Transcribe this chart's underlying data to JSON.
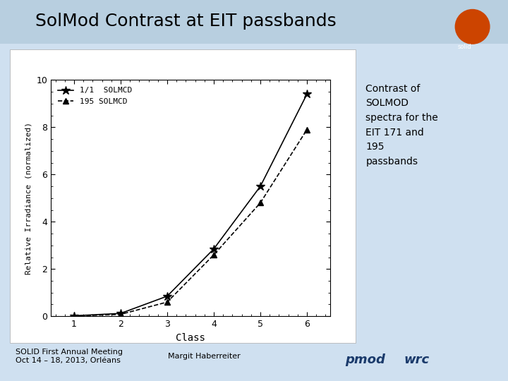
{
  "title": "SolMod Contrast at EIT passbands",
  "xlabel": "Class",
  "ylabel": "Relative Irradiance (normalized)",
  "xlim": [
    0.5,
    6.5
  ],
  "ylim": [
    0,
    10
  ],
  "xticks": [
    1,
    2,
    3,
    4,
    5,
    6
  ],
  "yticks": [
    0,
    2,
    4,
    6,
    8,
    10
  ],
  "series_171": {
    "label": "1/1  SOLMCD",
    "x": [
      1,
      2,
      3,
      4,
      5,
      6
    ],
    "y": [
      0.02,
      0.12,
      0.85,
      2.85,
      5.5,
      9.4
    ],
    "linestyle": "-",
    "marker": "*",
    "color": "black"
  },
  "series_195": {
    "label": "195 SOLMCD",
    "x": [
      1,
      2,
      3,
      4,
      5,
      6
    ],
    "y": [
      0.01,
      0.08,
      0.6,
      2.6,
      4.8,
      7.9
    ],
    "linestyle": "--",
    "marker": "^",
    "color": "black"
  },
  "side_text": "Contrast of\nSOLMOD\nspectra for the\nEIT 171 and\n195\npassbands",
  "footer_left": "SOLID First Annual Meeting\nOct 14 – 18, 2013, Orléans",
  "footer_right": "Margit Haberreiter",
  "background_slide": "#cfe0f0",
  "background_panel": "#e8f0f8",
  "background_plot": "#ffffff",
  "title_color": "#000000",
  "title_fontsize": 18,
  "axis_fontsize": 9,
  "legend_fontsize": 8,
  "footer_fontsize": 8,
  "side_text_fontsize": 10,
  "header_bar_color": "#b8cfe0"
}
